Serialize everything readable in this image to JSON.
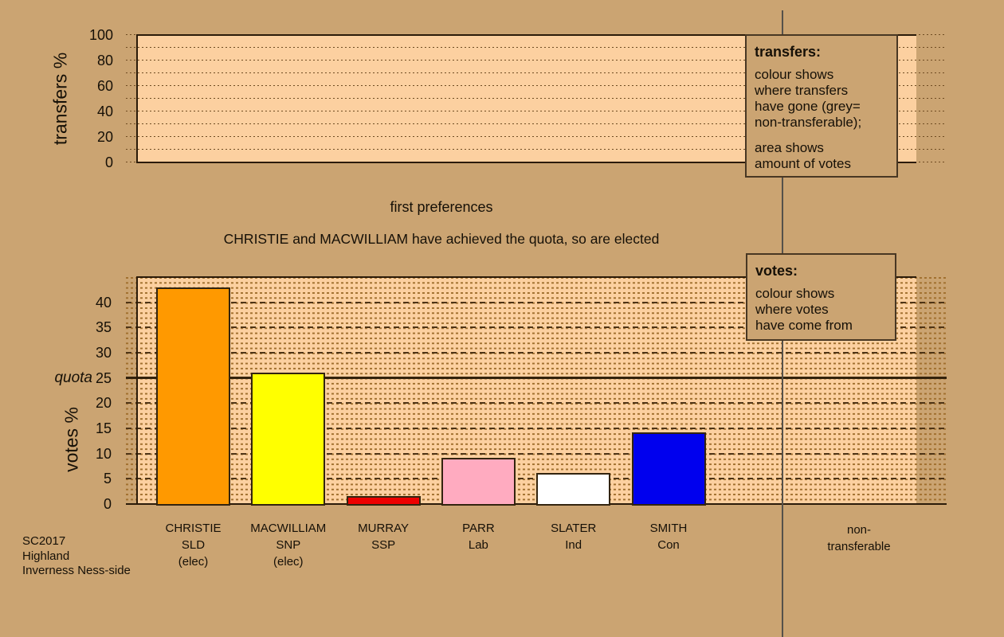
{
  "titles": {
    "stage_title": "first preferences",
    "stage_subtitle": "CHRISTIE and MACWILLIAM have achieved the quota, so are elected"
  },
  "legend_transfers": {
    "title": "transfers:",
    "body1": "colour shows\nwhere transfers\nhave gone (grey=\nnon-transferable);",
    "body2": "area shows\namount of votes"
  },
  "legend_votes": {
    "title": "votes:",
    "body": "colour shows\nwhere votes\nhave come from"
  },
  "footer": {
    "lines": "SC2017\nHighland\nInverness Ness-side"
  },
  "colors": {
    "background": "#cba472",
    "plot_fill": "#fcd0a0",
    "texture_dash": "#a1702f",
    "axis_line": "#2b1b09",
    "separator_line": "#56514a",
    "text": "#161007"
  },
  "chart_data": [
    {
      "id": "transfers",
      "type": "bar",
      "ylabel": "transfers %",
      "ylim": [
        0,
        100
      ],
      "yticks": [
        0,
        20,
        40,
        60,
        80,
        100
      ],
      "grid_step": 10,
      "grid_style": "dotted",
      "categories": [],
      "values": []
    },
    {
      "id": "votes",
      "type": "bar",
      "ylabel": "votes %",
      "ylim": [
        0,
        45
      ],
      "yticks": [
        0,
        5,
        10,
        15,
        20,
        25,
        30,
        35,
        40
      ],
      "grid_step": 5,
      "grid_style": "dashed",
      "quota": {
        "label": "quota",
        "value": 25
      },
      "categories": [
        {
          "name": "CHRISTIE",
          "party": "SLD",
          "status": "(elec)"
        },
        {
          "name": "MACWILLIAM",
          "party": "SNP",
          "status": "(elec)"
        },
        {
          "name": "MURRAY",
          "party": "SSP",
          "status": ""
        },
        {
          "name": "PARR",
          "party": "Lab",
          "status": ""
        },
        {
          "name": "SLATER",
          "party": "Ind",
          "status": ""
        },
        {
          "name": "SMITH",
          "party": "Con",
          "status": ""
        }
      ],
      "values": [
        42.9,
        26.0,
        1.6,
        9.1,
        6.2,
        14.2
      ],
      "bar_colors": [
        "#ff9900",
        "#ffff00",
        "#ee0000",
        "#ffabc0",
        "#ffffff",
        "#0000ee"
      ],
      "extra_column_label": "non-\ntransferable"
    }
  ]
}
